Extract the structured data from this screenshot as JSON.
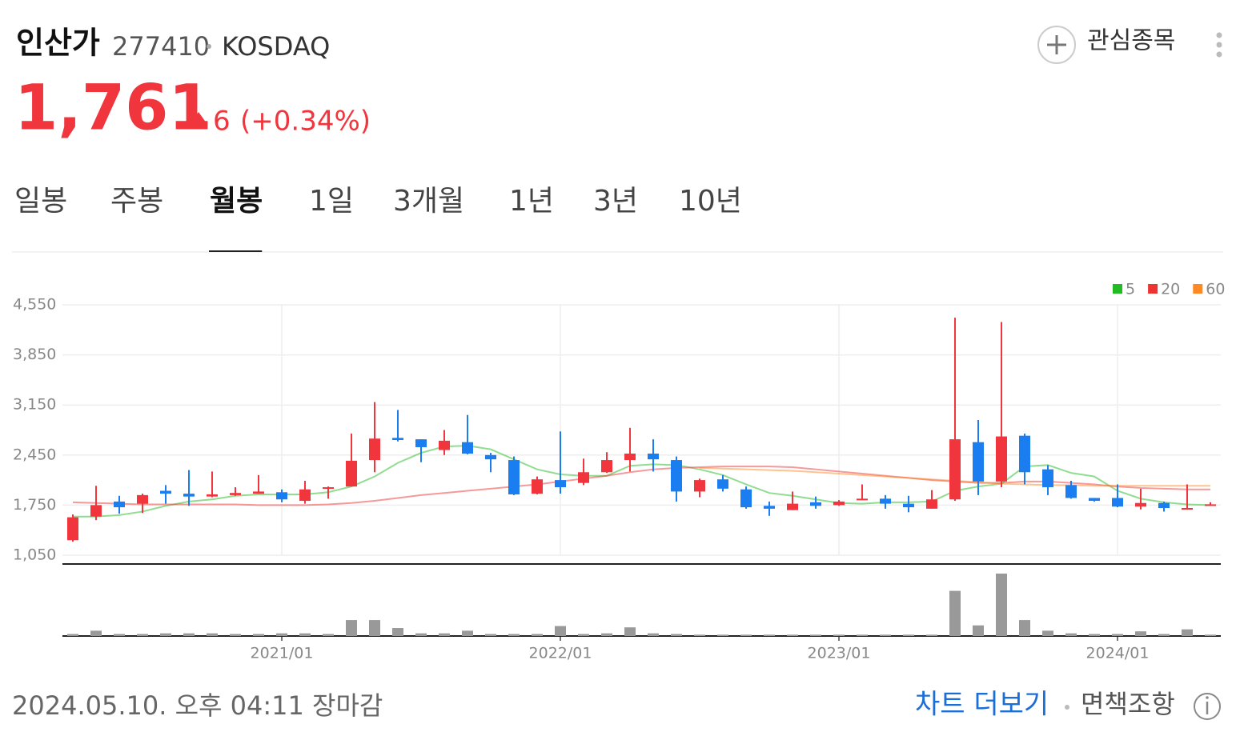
{
  "stock": {
    "name": "인산가",
    "code": "277410",
    "market": "KOSDAQ",
    "price": "1,761",
    "change": "6",
    "change_pct": "(+0.34%)"
  },
  "watch": "관심종목",
  "tabs": [
    "일봉",
    "주봉",
    "월봉",
    "1일",
    "3개월",
    "1년",
    "3년",
    "10년"
  ],
  "active_tab": 2,
  "chart_data": {
    "type": "candlestick",
    "categories": [
      null,
      null,
      null,
      null,
      null,
      null,
      null,
      null,
      null,
      "2021/01",
      null,
      null,
      null,
      null,
      null,
      null,
      null,
      null,
      null,
      null,
      null,
      "2022/01",
      null,
      null,
      null,
      null,
      null,
      null,
      null,
      null,
      null,
      null,
      null,
      "2023/01",
      null,
      null,
      null,
      null,
      null,
      null,
      null,
      null,
      null,
      null,
      null,
      "2024/01",
      null,
      null,
      null,
      null
    ],
    "open": [
      1260,
      1590,
      1800,
      1770,
      1950,
      1910,
      1870,
      1890,
      1910,
      1930,
      1810,
      1980,
      2010,
      2380,
      2690,
      2670,
      2520,
      2630,
      2450,
      2380,
      1910,
      2100,
      2060,
      2210,
      2380,
      2470,
      2380,
      1940,
      2110,
      1970,
      1740,
      1680,
      1790,
      1750,
      1820,
      1840,
      1770,
      1700,
      1830,
      2630,
      2080,
      2720,
      2250,
      2030,
      1850,
      1850,
      1730,
      1780,
      1690,
      1755
    ],
    "high": [
      1620,
      2020,
      1880,
      1910,
      2030,
      2240,
      2220,
      2000,
      2170,
      1970,
      2090,
      2010,
      2750,
      3190,
      3080,
      2670,
      2800,
      3010,
      2480,
      2430,
      2150,
      2780,
      2400,
      2490,
      2830,
      2670,
      2430,
      2120,
      2170,
      2010,
      1800,
      1940,
      1870,
      1820,
      2040,
      1890,
      1880,
      1960,
      4370,
      2940,
      4310,
      2750,
      2310,
      2090,
      1850,
      2040,
      1980,
      1800,
      2040,
      1790
    ],
    "low": [
      1240,
      1540,
      1630,
      1640,
      1770,
      1740,
      1860,
      1880,
      1910,
      1790,
      1770,
      1840,
      2010,
      2210,
      2640,
      2350,
      2450,
      2460,
      2210,
      1890,
      1900,
      1910,
      2030,
      2200,
      2220,
      2220,
      1800,
      1860,
      1940,
      1700,
      1600,
      1680,
      1700,
      1740,
      1820,
      1700,
      1650,
      1700,
      1810,
      1890,
      2000,
      2040,
      1890,
      1840,
      1800,
      1720,
      1690,
      1660,
      1690,
      1740
    ],
    "close": [
      1580,
      1750,
      1720,
      1890,
      1910,
      1870,
      1900,
      1920,
      1940,
      1830,
      1970,
      2000,
      2370,
      2680,
      2660,
      2560,
      2650,
      2470,
      2390,
      1900,
      2110,
      2000,
      2210,
      2380,
      2470,
      2390,
      1940,
      2100,
      1980,
      1720,
      1700,
      1770,
      1740,
      1800,
      1840,
      1770,
      1720,
      1830,
      2670,
      2080,
      2710,
      2210,
      2000,
      1850,
      1810,
      1730,
      1780,
      1710,
      1710,
      1761
    ],
    "up_color": "#f0353d",
    "down_color": "#1a7ef0",
    "series": [
      {
        "name": "5",
        "color": "#22bb22",
        "values": [
          1590,
          1590,
          1610,
          1660,
          1740,
          1800,
          1830,
          1880,
          1900,
          1900,
          1900,
          1930,
          2010,
          2150,
          2340,
          2480,
          2570,
          2580,
          2530,
          2390,
          2250,
          2180,
          2160,
          2160,
          2300,
          2320,
          2310,
          2250,
          2170,
          2040,
          1920,
          1880,
          1830,
          1780,
          1770,
          1790,
          1790,
          1800,
          1950,
          2010,
          2050,
          2290,
          2310,
          2200,
          2150,
          1950,
          1840,
          1790,
          1760,
          1750
        ]
      },
      {
        "name": "20",
        "color": "#ee3333",
        "values": [
          1790,
          1780,
          1770,
          1760,
          1760,
          1760,
          1760,
          1760,
          1750,
          1750,
          1750,
          1760,
          1780,
          1810,
          1850,
          1890,
          1920,
          1950,
          1980,
          2010,
          2040,
          2080,
          2120,
          2160,
          2210,
          2250,
          2270,
          2280,
          2290,
          2290,
          2290,
          2280,
          2250,
          2220,
          2190,
          2160,
          2130,
          2100,
          2080,
          2060,
          2060,
          2080,
          2080,
          2060,
          2040,
          2010,
          1990,
          1980,
          1970,
          1970
        ]
      },
      {
        "name": "60",
        "color": "#ff8822",
        "values": [
          null,
          null,
          null,
          null,
          null,
          null,
          null,
          null,
          null,
          null,
          null,
          null,
          null,
          null,
          null,
          null,
          null,
          null,
          null,
          null,
          null,
          null,
          null,
          null,
          null,
          null,
          null,
          2270,
          2260,
          2250,
          2240,
          2230,
          2210,
          2190,
          2170,
          2150,
          2130,
          2110,
          2090,
          2070,
          2050,
          2040,
          2030,
          2030,
          2020,
          2020,
          2020,
          2020,
          2020,
          2020
        ]
      }
    ],
    "volume": [
      3,
      8,
      3,
      3,
      4,
      4,
      4,
      3,
      3,
      4,
      4,
      3,
      24,
      24,
      12,
      4,
      4,
      8,
      3,
      3,
      3,
      15,
      3,
      4,
      13,
      4,
      3,
      2,
      2,
      2,
      2,
      2,
      2,
      2,
      2,
      2,
      2,
      2,
      68,
      16,
      94,
      24,
      8,
      4,
      3,
      3,
      7,
      3,
      10,
      2
    ],
    "volume_color": "#999999",
    "vlim": [
      0,
      100
    ],
    "ylim": [
      1050,
      4550
    ],
    "yticks": [
      {
        "value": 1050,
        "label": "1,050"
      },
      {
        "value": 1750,
        "label": "1,750"
      },
      {
        "value": 2450,
        "label": "2,450"
      },
      {
        "value": 3150,
        "label": "3,150"
      },
      {
        "value": 3850,
        "label": "3,850"
      },
      {
        "value": 4550,
        "label": "4,550"
      }
    ],
    "grid": true
  },
  "footer": {
    "timestamp": "2024.05.10. 오후 04:11 장마감",
    "more": "차트 더보기",
    "disclaimer": "면책조항"
  }
}
